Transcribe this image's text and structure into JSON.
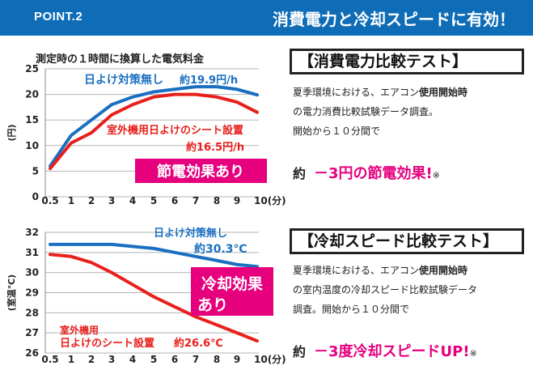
{
  "header": {
    "point": "POINT.2",
    "title": "消費電力と冷却スピードに有効！"
  },
  "colors": {
    "blue": "#1a6fc2",
    "red": "#e8201b",
    "magenta": "#e6007e",
    "header": "#0f6cb6"
  },
  "chart_data": [
    {
      "type": "line",
      "title": "測定時の１時間に換算した電気料金",
      "ylabel": "(円)",
      "x_ticks": [
        "0.5",
        "1",
        "2",
        "3",
        "4",
        "5",
        "6",
        "7",
        "8",
        "9",
        "10(分)"
      ],
      "y_ticks": [
        "0",
        "5",
        "10",
        "15",
        "20",
        "25"
      ],
      "ylim": [
        0,
        25
      ],
      "grid": true,
      "series": [
        {
          "name": "日よけ対策無し",
          "color": "#1a6fc2",
          "values": [
            6.0,
            12.0,
            15.0,
            18.0,
            19.5,
            20.5,
            21.0,
            21.5,
            21.5,
            21.0,
            19.9
          ]
        },
        {
          "name": "室外機用日よけのシート設置",
          "color": "#e8201b",
          "values": [
            5.5,
            10.5,
            12.5,
            16.0,
            18.0,
            19.5,
            20.0,
            20.0,
            19.5,
            18.5,
            16.5
          ]
        }
      ],
      "labels": {
        "blue_name": "日よけ対策無し",
        "blue_value": "約19.9円/h",
        "red_name": "室外機用日よけのシート設置",
        "red_value": "約16.5円/h",
        "badge": "節電効果あり"
      }
    },
    {
      "type": "line",
      "ylabel": "(室温℃)",
      "x_ticks": [
        "0.5",
        "1",
        "2",
        "3",
        "4",
        "5",
        "6",
        "7",
        "8",
        "9",
        "10(分)"
      ],
      "y_ticks": [
        "26",
        "27",
        "28",
        "29",
        "30",
        "31",
        "32"
      ],
      "ylim": [
        26,
        32
      ],
      "grid": true,
      "series": [
        {
          "name": "日よけ対策無し",
          "color": "#1a6fc2",
          "values": [
            31.4,
            31.4,
            31.4,
            31.4,
            31.3,
            31.2,
            31.0,
            30.8,
            30.6,
            30.4,
            30.3
          ]
        },
        {
          "name": "室外機用日よけのシート設置",
          "color": "#e8201b",
          "values": [
            30.9,
            30.8,
            30.5,
            30.0,
            29.4,
            28.8,
            28.3,
            27.8,
            27.4,
            27.0,
            26.6
          ]
        }
      ],
      "labels": {
        "blue_name": "日よけ対策無し",
        "blue_value": "約30.3℃",
        "red_name_1": "室外機用",
        "red_name_2": "日よけのシート設置",
        "red_value": "約26.6℃",
        "badge_1": "冷却効果",
        "badge_2": "あり"
      }
    }
  ],
  "test1": {
    "title": "【消費電力比較テスト】",
    "line1_a": "夏季環境における、エアコン",
    "line1_b": "使用開始時",
    "line2": "の電力消費比較試験データ調査。",
    "line3": "開始から１０分間で",
    "yaku": "約",
    "result": "－3円の節電効果!",
    "note": "※"
  },
  "test2": {
    "title": "【冷却スピード比較テスト】",
    "line1_a": "夏季環境における、エアコン",
    "line1_b": "使用開始時",
    "line2": "の室内温度の冷却スピード比較試験データ",
    "line3": "調査。開始から１０分間で",
    "yaku": "約",
    "result": "－3度冷却スピードUP!",
    "note": "※"
  }
}
